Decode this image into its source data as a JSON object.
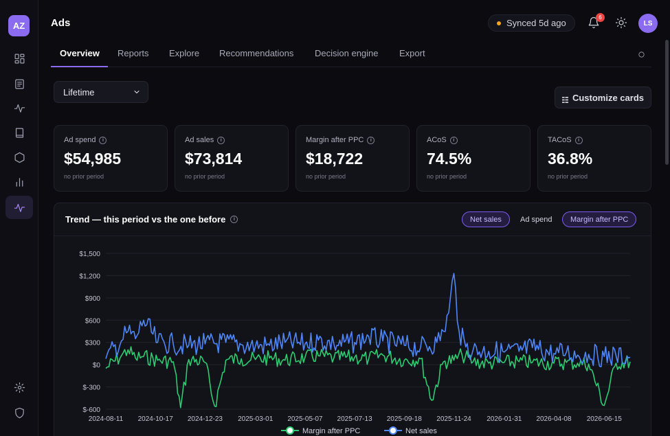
{
  "app": {
    "logo": "AZ",
    "page_title": "Ads"
  },
  "sidebar": {
    "items": [
      {
        "name": "dashboard-icon"
      },
      {
        "name": "document-icon"
      },
      {
        "name": "activity-icon"
      },
      {
        "name": "book-icon"
      },
      {
        "name": "hexagon-icon"
      },
      {
        "name": "bar-chart-icon"
      },
      {
        "name": "pulse-icon",
        "active": true
      }
    ],
    "bottom": [
      {
        "name": "settings-icon"
      },
      {
        "name": "shield-icon"
      }
    ]
  },
  "header": {
    "sync_status": "Synced 5d ago",
    "notification_count": "6",
    "avatar_initials": "LS"
  },
  "tabs": [
    {
      "label": "Overview",
      "active": true
    },
    {
      "label": "Reports"
    },
    {
      "label": "Explore"
    },
    {
      "label": "Recommendations"
    },
    {
      "label": "Decision engine"
    },
    {
      "label": "Export"
    }
  ],
  "controls": {
    "period": "Lifetime",
    "customize_label": "Customize cards"
  },
  "kpis": [
    {
      "label": "Ad spend",
      "value": "$54,985",
      "sub": "no prior period"
    },
    {
      "label": "Ad sales",
      "value": "$73,814",
      "sub": "no prior period"
    },
    {
      "label": "Margin after PPC",
      "value": "$18,722",
      "sub": "no prior period"
    },
    {
      "label": "ACoS",
      "value": "74.5%",
      "sub": "no prior period"
    },
    {
      "label": "TACoS",
      "value": "36.8%",
      "sub": "no prior period"
    }
  ],
  "trend": {
    "title": "Trend — this period vs the one before",
    "toggles": [
      {
        "label": "Net sales",
        "on": true
      },
      {
        "label": "Ad spend",
        "on": false
      },
      {
        "label": "Margin after PPC",
        "on": true
      }
    ]
  },
  "colors": {
    "accent": "#8b6cf0",
    "net_sales": "#4f86f7",
    "margin": "#2ecc71",
    "sync_dot": "#f5a524",
    "badge": "#ef4444"
  },
  "chart_data": {
    "type": "line",
    "title": "Trend — this period vs the one before",
    "ylim": [
      -600,
      1500
    ],
    "yticks": [
      "$1,500",
      "$1,200",
      "$900",
      "$600",
      "$300",
      "$0",
      "$-300",
      "$-600"
    ],
    "ytick_values": [
      1500,
      1200,
      900,
      600,
      300,
      0,
      -300,
      -600
    ],
    "xticks": [
      "2024-08-11",
      "2024-10-17",
      "2024-12-23",
      "2025-03-01",
      "2025-05-07",
      "2025-07-13",
      "2025-09-18",
      "2025-11-24",
      "2026-01-31",
      "2026-04-08",
      "2026-06-15"
    ],
    "x_start": "2024-08-11",
    "x_end": "2026-07-20",
    "grid": true,
    "legend": "bottom",
    "series": [
      {
        "name": "Margin after PPC",
        "color": "#2ecc71",
        "dates": [
          "2024-08-11",
          "2024-09-01",
          "2024-09-10",
          "2024-09-20",
          "2024-10-01",
          "2024-10-20",
          "2024-11-10",
          "2024-11-20",
          "2024-12-01",
          "2024-12-23",
          "2025-01-05",
          "2025-01-20",
          "2025-02-10",
          "2025-03-01",
          "2025-03-20",
          "2025-04-10",
          "2025-05-07",
          "2025-05-25",
          "2025-06-15",
          "2025-07-13",
          "2025-08-01",
          "2025-08-20",
          "2025-09-18",
          "2025-10-10",
          "2025-10-25",
          "2025-11-10",
          "2025-11-24",
          "2025-12-05",
          "2025-12-20",
          "2026-01-10",
          "2026-01-31",
          "2026-02-20",
          "2026-03-10",
          "2026-04-08",
          "2026-04-25",
          "2026-05-10",
          "2026-05-25",
          "2026-06-15",
          "2026-07-01",
          "2026-07-20"
        ],
        "values": [
          -50,
          120,
          200,
          90,
          110,
          60,
          40,
          -580,
          70,
          30,
          -560,
          60,
          80,
          70,
          90,
          60,
          100,
          120,
          90,
          100,
          80,
          130,
          60,
          80,
          -480,
          40,
          60,
          130,
          40,
          20,
          30,
          40,
          30,
          20,
          30,
          20,
          10,
          -550,
          20,
          40
        ]
      },
      {
        "name": "Net sales",
        "color": "#4f86f7",
        "dates": [
          "2024-08-11",
          "2024-09-01",
          "2024-09-10",
          "2024-09-20",
          "2024-10-01",
          "2024-10-20",
          "2024-11-10",
          "2024-12-01",
          "2024-12-23",
          "2025-01-20",
          "2025-02-10",
          "2025-03-01",
          "2025-03-20",
          "2025-04-10",
          "2025-05-07",
          "2025-05-25",
          "2025-06-15",
          "2025-07-13",
          "2025-08-01",
          "2025-08-20",
          "2025-09-18",
          "2025-10-10",
          "2025-11-01",
          "2025-11-10",
          "2025-11-17",
          "2025-11-24",
          "2025-12-01",
          "2025-12-10",
          "2025-12-20",
          "2026-01-10",
          "2026-01-31",
          "2026-02-20",
          "2026-03-10",
          "2026-04-08",
          "2026-04-25",
          "2026-05-10",
          "2026-05-25",
          "2026-06-15",
          "2026-07-01",
          "2026-07-20"
        ],
        "values": [
          80,
          320,
          450,
          350,
          600,
          300,
          280,
          260,
          280,
          300,
          270,
          250,
          260,
          300,
          280,
          330,
          280,
          300,
          380,
          320,
          260,
          230,
          300,
          450,
          700,
          1230,
          450,
          240,
          200,
          180,
          170,
          180,
          230,
          150,
          170,
          130,
          140,
          110,
          120,
          100
        ]
      }
    ]
  }
}
